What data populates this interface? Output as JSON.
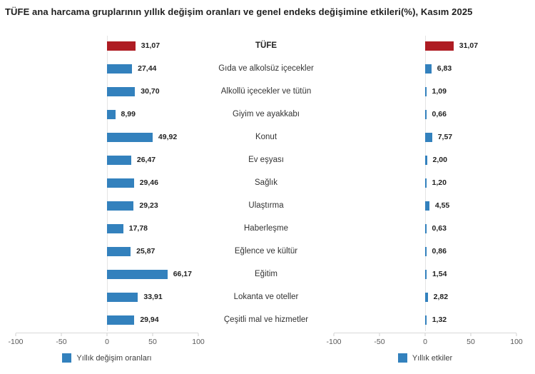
{
  "title": "TÜFE ana harcama gruplarının yıllık değişim oranları ve genel endeks değişimine etkileri(%), Kasım 2025",
  "colors": {
    "bar_blue": "#3381bd",
    "bar_red": "#ae1c23",
    "axis_line": "#d9d9d9",
    "zero_line": "#e4e4e4",
    "tick_text": "#595959",
    "value_text": "#1f1f1f",
    "category_text": "#333333",
    "legend_text": "#404040",
    "title_text": "#1f1f1f"
  },
  "categories": [
    "TÜFE",
    "Gıda ve alkolsüz içecekler",
    "Alkollü içecekler ve tütün",
    "Giyim ve ayakkabı",
    "Konut",
    "Ev eşyası",
    "Sağlık",
    "Ulaştırma",
    "Haberleşme",
    "Eğlence ve kültür",
    "Eğitim",
    "Lokanta ve oteller",
    "Çeşitli mal ve hizmetler"
  ],
  "highlight_index": 0,
  "chart_data": [
    {
      "type": "bar",
      "orientation": "horizontal",
      "name": "Yıllık değişim oranları",
      "categories": [
        "TÜFE",
        "Gıda ve alkolsüz içecekler",
        "Alkollü içecekler ve tütün",
        "Giyim ve ayakkabı",
        "Konut",
        "Ev eşyası",
        "Sağlık",
        "Ulaştırma",
        "Haberleşme",
        "Eğlence ve kültür",
        "Eğitim",
        "Lokanta ve oteller",
        "Çeşitli mal ve hizmetler"
      ],
      "values": [
        31.07,
        27.44,
        30.7,
        8.99,
        49.92,
        26.47,
        29.46,
        29.23,
        17.78,
        25.87,
        66.17,
        33.91,
        29.94
      ],
      "value_labels": [
        "31,07",
        "27,44",
        "30,70",
        "8,99",
        "49,92",
        "26,47",
        "29,46",
        "29,23",
        "17,78",
        "25,87",
        "66,17",
        "33,91",
        "29,94"
      ],
      "xlim": [
        -100,
        100
      ],
      "xticks": [
        -100,
        -50,
        0,
        50,
        100
      ],
      "xtick_labels": [
        "-100",
        "-50",
        "0",
        "50",
        "100"
      ],
      "legend": "Yıllık değişim oranları",
      "legend_position": "bottom",
      "grid": "zero-line-only",
      "bar_color": "#3381bd",
      "highlight_color": "#ae1c23",
      "highlight_index": 0
    },
    {
      "type": "bar",
      "orientation": "horizontal",
      "name": "Yıllık etkiler",
      "categories": [
        "TÜFE",
        "Gıda ve alkolsüz içecekler",
        "Alkollü içecekler ve tütün",
        "Giyim ve ayakkabı",
        "Konut",
        "Ev eşyası",
        "Sağlık",
        "Ulaştırma",
        "Haberleşme",
        "Eğlence ve kültür",
        "Eğitim",
        "Lokanta ve oteller",
        "Çeşitli mal ve hizmetler"
      ],
      "values": [
        31.07,
        6.83,
        1.09,
        0.66,
        7.57,
        2.0,
        1.2,
        4.55,
        0.63,
        0.86,
        1.54,
        2.82,
        1.32
      ],
      "value_labels": [
        "31,07",
        "6,83",
        "1,09",
        "0,66",
        "7,57",
        "2,00",
        "1,20",
        "4,55",
        "0,63",
        "0,86",
        "1,54",
        "2,82",
        "1,32"
      ],
      "xlim": [
        -100,
        100
      ],
      "xticks": [
        -100,
        -50,
        0,
        50,
        100
      ],
      "xtick_labels": [
        "-100",
        "-50",
        "0",
        "50",
        "100"
      ],
      "legend": "Yıllık etkiler",
      "legend_position": "bottom",
      "grid": "zero-line-only",
      "bar_color": "#3381bd",
      "highlight_color": "#ae1c23",
      "highlight_index": 0
    }
  ]
}
